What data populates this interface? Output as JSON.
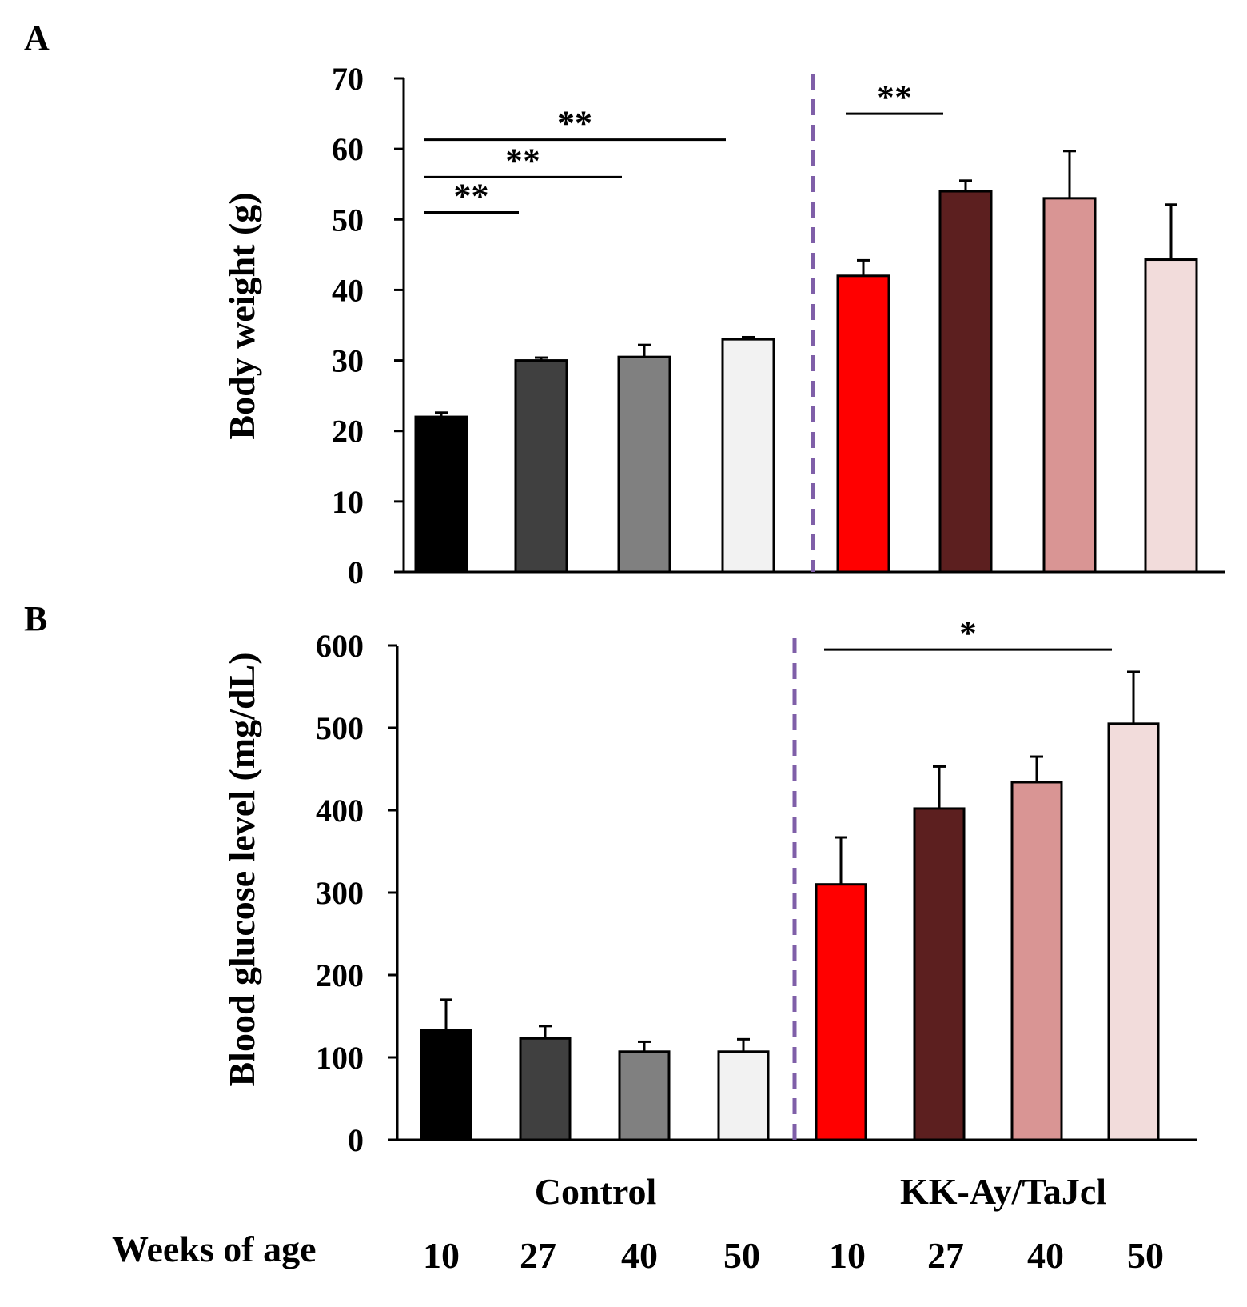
{
  "chart_data": [
    {
      "type": "bar",
      "panel_label": "A",
      "ylabel": "Body weight (g)",
      "ylim": [
        0,
        70
      ],
      "yticks": [
        "0",
        "10",
        "20",
        "30",
        "40",
        "50",
        "60",
        "70"
      ],
      "categories": [
        "10",
        "27",
        "40",
        "50",
        "10",
        "27",
        "40",
        "50"
      ],
      "groups": [
        "Control",
        "Control",
        "Control",
        "Control",
        "KK-Ay/TaJcl",
        "KK-Ay/TaJcl",
        "KK-Ay/TaJcl",
        "KK-Ay/TaJcl"
      ],
      "values": [
        22,
        30,
        30.5,
        33,
        42,
        54,
        53,
        44.3
      ],
      "errors": [
        0.6,
        0.4,
        1.7,
        0.3,
        2.2,
        1.5,
        6.7,
        7.8
      ],
      "colors": [
        "#000000",
        "#404040",
        "#808080",
        "#f2f2f2",
        "#ff0000",
        "#5c1f1f",
        "#d99594",
        "#f2dcdb"
      ],
      "significance": [
        {
          "label": "**",
          "from": 0,
          "to": 1,
          "level": 51
        },
        {
          "label": "**",
          "from": 0,
          "to": 2,
          "level": 56
        },
        {
          "label": "**",
          "from": 0,
          "to": 3,
          "level": 61.3
        },
        {
          "label": "**",
          "from": 4,
          "to": 5,
          "level": 65
        }
      ]
    },
    {
      "type": "bar",
      "panel_label": "B",
      "ylabel": "Blood glucose level (mg/dL)",
      "ylim": [
        0,
        600
      ],
      "yticks": [
        "0",
        "100",
        "200",
        "300",
        "400",
        "500",
        "600"
      ],
      "categories": [
        "10",
        "27",
        "40",
        "50",
        "10",
        "27",
        "40",
        "50"
      ],
      "groups": [
        "Control",
        "Control",
        "Control",
        "Control",
        "KK-Ay/TaJcl",
        "KK-Ay/TaJcl",
        "KK-Ay/TaJcl",
        "KK-Ay/TaJcl"
      ],
      "values": [
        133,
        123,
        107,
        107,
        310,
        402,
        434,
        505
      ],
      "errors": [
        37,
        15,
        12,
        15,
        57,
        51,
        31,
        63
      ],
      "colors": [
        "#000000",
        "#404040",
        "#808080",
        "#f2f2f2",
        "#ff0000",
        "#5c1f1f",
        "#d99594",
        "#f2dcdb"
      ],
      "significance": [
        {
          "label": "*",
          "from": 4,
          "to": 7,
          "level": 595
        }
      ]
    }
  ],
  "bottom": {
    "control_label": "Control",
    "mutant_label": "KK-Ay/TaJcl",
    "weeks_label": "Weeks of age",
    "weeks": [
      "10",
      "27",
      "40",
      "50",
      "10",
      "27",
      "40",
      "50"
    ]
  },
  "colors": {
    "divider": "#7f5fa8",
    "mutant_text": "#ff0000"
  }
}
